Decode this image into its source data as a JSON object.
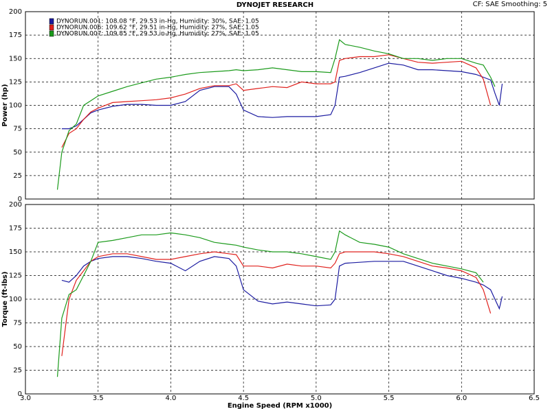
{
  "header": {
    "title": "DYNOJET RESEARCH",
    "info": "CF: SAE  Smoothing: 5"
  },
  "chart_data": [
    {
      "type": "line",
      "ylabel": "Power (hp)",
      "x": [
        3.22,
        3.25,
        3.3,
        3.35,
        3.4,
        3.45,
        3.5,
        3.6,
        3.7,
        3.8,
        3.9,
        4.0,
        4.1,
        4.2,
        4.3,
        4.4,
        4.45,
        4.5,
        4.6,
        4.7,
        4.8,
        4.9,
        5.0,
        5.1,
        5.13,
        5.16,
        5.2,
        5.3,
        5.4,
        5.5,
        5.6,
        5.7,
        5.8,
        5.9,
        6.0,
        6.1,
        6.15,
        6.2,
        6.23,
        6.26,
        6.28
      ],
      "xlim": [
        3,
        6.5
      ],
      "xticks": [
        3,
        3.5,
        4,
        4.5,
        5,
        5.5,
        6,
        6.5
      ],
      "show_xtick_labels": false,
      "ylim": [
        0,
        200
      ],
      "yticks": [
        0,
        25,
        50,
        75,
        100,
        125,
        150,
        175,
        200
      ],
      "grid": true,
      "series": [
        {
          "name": "DYNORUN.001: 108.08 °F, 29.53 in-Hg, Humidity: 30%, SAE: 1.05",
          "color": "#1a1aa0",
          "values": [
            null,
            75,
            75,
            78,
            85,
            92,
            95,
            99,
            101,
            101,
            100,
            100,
            104,
            116,
            120,
            120,
            112,
            95,
            88,
            87,
            88,
            88,
            88,
            90,
            100,
            130,
            131,
            135,
            140,
            145,
            143,
            138,
            138,
            137,
            136,
            133,
            130,
            127,
            113,
            100,
            123
          ]
        },
        {
          "name": "DYNORUN.006: 109.62 °F, 29.51 in-Hg, Humidity: 27%, SAE: 1.05",
          "color": "#e0201c",
          "values": [
            null,
            55,
            70,
            75,
            85,
            93,
            97,
            103,
            104,
            105,
            106,
            108,
            112,
            118,
            121,
            121,
            123,
            116,
            118,
            120,
            119,
            125,
            123,
            123,
            125,
            148,
            150,
            152,
            152,
            154,
            150,
            146,
            145,
            146,
            147,
            140,
            128,
            100,
            null,
            null,
            null
          ]
        },
        {
          "name": "DYNORUN.007: 109.85 °F, 29.53 in-Hg, Humidity: 27%, SAE: 1.05",
          "color": "#1a9a1a",
          "values": [
            10,
            50,
            73,
            80,
            100,
            105,
            110,
            115,
            120,
            124,
            128,
            130,
            133,
            135,
            136,
            137,
            138,
            137,
            138,
            140,
            138,
            136,
            136,
            135,
            150,
            170,
            165,
            162,
            158,
            155,
            150,
            150,
            148,
            150,
            150,
            145,
            143,
            130,
            120,
            null,
            null
          ]
        }
      ]
    },
    {
      "type": "line",
      "ylabel": "Torque (ft-lbs)",
      "xlabel": "Engine Speed (RPM x1000)",
      "x": [
        3.22,
        3.25,
        3.3,
        3.35,
        3.4,
        3.45,
        3.5,
        3.6,
        3.7,
        3.8,
        3.9,
        4.0,
        4.1,
        4.2,
        4.3,
        4.4,
        4.45,
        4.5,
        4.6,
        4.7,
        4.8,
        4.9,
        5.0,
        5.1,
        5.13,
        5.16,
        5.2,
        5.3,
        5.4,
        5.5,
        5.6,
        5.7,
        5.8,
        5.9,
        6.0,
        6.1,
        6.15,
        6.2,
        6.23,
        6.26,
        6.28
      ],
      "xlim": [
        3,
        6.5
      ],
      "xticks": [
        {
          "value": 3,
          "label": "3.0"
        },
        3.5,
        {
          "value": 4,
          "label": "4.0"
        },
        4.5,
        {
          "value": 5,
          "label": "5.0"
        },
        5.5,
        {
          "value": 6,
          "label": "6.0"
        },
        6.5
      ],
      "show_xtick_labels": true,
      "ylim": [
        0,
        200
      ],
      "yticks": [
        0,
        25,
        50,
        75,
        100,
        125,
        150,
        175,
        200
      ],
      "grid": true,
      "series": [
        {
          "color": "#1a1aa0",
          "values": [
            null,
            120,
            118,
            125,
            135,
            140,
            143,
            145,
            145,
            143,
            140,
            138,
            130,
            140,
            145,
            143,
            135,
            110,
            98,
            95,
            97,
            95,
            93,
            94,
            100,
            135,
            138,
            139,
            140,
            140,
            140,
            135,
            130,
            125,
            122,
            118,
            115,
            110,
            100,
            90,
            103
          ]
        },
        {
          "color": "#e0201c",
          "values": [
            null,
            40,
            100,
            120,
            130,
            140,
            145,
            148,
            148,
            145,
            142,
            142,
            145,
            148,
            150,
            148,
            147,
            135,
            135,
            133,
            137,
            135,
            135,
            133,
            138,
            148,
            150,
            150,
            150,
            148,
            145,
            140,
            135,
            133,
            130,
            123,
            110,
            85,
            null,
            null,
            null
          ]
        },
        {
          "color": "#1a9a1a",
          "values": [
            18,
            80,
            105,
            110,
            125,
            140,
            160,
            162,
            165,
            168,
            168,
            170,
            168,
            165,
            160,
            158,
            157,
            155,
            152,
            150,
            150,
            148,
            145,
            142,
            150,
            172,
            168,
            160,
            158,
            155,
            148,
            143,
            138,
            135,
            132,
            128,
            118,
            null,
            null,
            null,
            null
          ]
        }
      ]
    }
  ]
}
